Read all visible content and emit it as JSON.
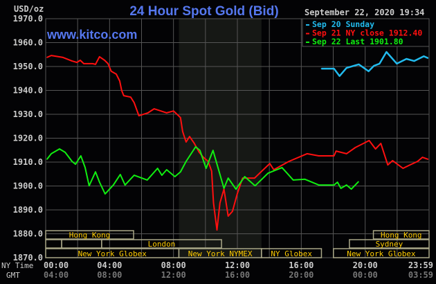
{
  "chart_data": {
    "type": "line",
    "title": "24 Hour Spot Gold (Bid)",
    "watermark": "www.kitco.com",
    "timestamp": "September 22, 2020 19:34",
    "ylabel": "USD/oz",
    "ylim": [
      1870,
      1970
    ],
    "yticks": [
      "1970.0",
      "1960.0",
      "1950.0",
      "1940.0",
      "1930.0",
      "1920.0",
      "1910.0",
      "1900.0",
      "1890.0",
      "1880.0",
      "1870.0"
    ],
    "xaxis_label": "NY Time",
    "xaxis2_label": "GMT",
    "xticks": [
      "00:00",
      "04:00",
      "08:00",
      "12:00",
      "16:00",
      "20:00",
      "23:59"
    ],
    "xticks_gmt": [
      "04:00",
      "08:00",
      "12:00",
      "16:00",
      "20:00",
      "00:00",
      "03:59"
    ],
    "grid": true,
    "legend_position": "top-right",
    "nymex_shade": [
      "08:20",
      "13:30"
    ],
    "series": [
      {
        "name": "Sep 20 Sunday",
        "legend": "Sep 20 Sunday",
        "color": "#22bbee",
        "points": [
          [
            "17:15",
            1949.1
          ],
          [
            "18:02",
            1949.1
          ],
          [
            "18:23",
            1946.0
          ],
          [
            "18:49",
            1949.4
          ],
          [
            "19:35",
            1950.9
          ],
          [
            "20:12",
            1948.0
          ],
          [
            "20:32",
            1950.3
          ],
          [
            "20:53",
            1951.2
          ],
          [
            "21:19",
            1956.1
          ],
          [
            "21:58",
            1951.2
          ],
          [
            "22:34",
            1953.2
          ],
          [
            "23:03",
            1952.3
          ],
          [
            "23:39",
            1954.3
          ],
          [
            "23:55",
            1953.5
          ]
        ]
      },
      {
        "name": "Sep 21 NY close 1912.40",
        "legend": "Sep 21 NY close 1912.40",
        "color": "#ff1010",
        "points": [
          [
            "00:05",
            1953.8
          ],
          [
            "00:21",
            1954.6
          ],
          [
            "01:05",
            1953.8
          ],
          [
            "01:39",
            1952.3
          ],
          [
            "01:57",
            1951.7
          ],
          [
            "02:10",
            1952.6
          ],
          [
            "02:23",
            1951.2
          ],
          [
            "02:56",
            1951.2
          ],
          [
            "03:07",
            1950.9
          ],
          [
            "03:22",
            1954.1
          ],
          [
            "03:41",
            1952.6
          ],
          [
            "03:54",
            1951.2
          ],
          [
            "04:06",
            1948.0
          ],
          [
            "04:25",
            1946.8
          ],
          [
            "04:38",
            1943.9
          ],
          [
            "04:45",
            1940.1
          ],
          [
            "04:53",
            1937.8
          ],
          [
            "05:19",
            1937.2
          ],
          [
            "05:32",
            1934.9
          ],
          [
            "05:50",
            1929.4
          ],
          [
            "06:24",
            1930.6
          ],
          [
            "06:47",
            1932.3
          ],
          [
            "07:34",
            1930.6
          ],
          [
            "08:00",
            1931.4
          ],
          [
            "08:26",
            1928.6
          ],
          [
            "08:34",
            1922.8
          ],
          [
            "08:47",
            1918.4
          ],
          [
            "09:00",
            1920.7
          ],
          [
            "09:18",
            1917.8
          ],
          [
            "09:36",
            1914.1
          ],
          [
            "09:52",
            1912.0
          ],
          [
            "10:10",
            1910.3
          ],
          [
            "10:23",
            1906.2
          ],
          [
            "10:30",
            1892.9
          ],
          [
            "10:43",
            1881.6
          ],
          [
            "10:54",
            1892.9
          ],
          [
            "11:09",
            1898.7
          ],
          [
            "11:25",
            1887.4
          ],
          [
            "11:41",
            1889.4
          ],
          [
            "11:59",
            1896.7
          ],
          [
            "12:19",
            1903.3
          ],
          [
            "13:04",
            1903.3
          ],
          [
            "14:01",
            1909.4
          ],
          [
            "14:16",
            1906.8
          ],
          [
            "15:13",
            1910.3
          ],
          [
            "16:21",
            1913.5
          ],
          [
            "17:05",
            1912.6
          ],
          [
            "18:02",
            1912.6
          ],
          [
            "18:10",
            1914.6
          ],
          [
            "18:49",
            1913.5
          ],
          [
            "19:22",
            1916.1
          ],
          [
            "20:14",
            1919.0
          ],
          [
            "20:38",
            1915.5
          ],
          [
            "20:58",
            1917.8
          ],
          [
            "21:24",
            1908.8
          ],
          [
            "21:42",
            1910.6
          ],
          [
            "22:21",
            1907.4
          ],
          [
            "22:47",
            1908.8
          ],
          [
            "23:16",
            1910.3
          ],
          [
            "23:34",
            1912.0
          ],
          [
            "23:55",
            1911.2
          ]
        ]
      },
      {
        "name": "Sep 22 Last 1901.80",
        "legend": "Sep 22 Last 1901.80",
        "color": "#11ee11",
        "points": [
          [
            "00:05",
            1911.2
          ],
          [
            "00:21",
            1913.5
          ],
          [
            "00:52",
            1915.5
          ],
          [
            "01:13",
            1914.1
          ],
          [
            "01:39",
            1910.3
          ],
          [
            "01:52",
            1909.1
          ],
          [
            "02:12",
            1912.6
          ],
          [
            "02:28",
            1907.7
          ],
          [
            "02:43",
            1900.1
          ],
          [
            "03:07",
            1905.9
          ],
          [
            "03:22",
            1901.6
          ],
          [
            "03:43",
            1896.7
          ],
          [
            "04:14",
            1900.4
          ],
          [
            "04:40",
            1904.8
          ],
          [
            "04:58",
            1900.4
          ],
          [
            "05:32",
            1904.5
          ],
          [
            "06:08",
            1903.0
          ],
          [
            "06:21",
            1902.5
          ],
          [
            "07:00",
            1907.4
          ],
          [
            "07:16",
            1904.5
          ],
          [
            "07:34",
            1906.8
          ],
          [
            "08:05",
            1903.9
          ],
          [
            "08:26",
            1905.9
          ],
          [
            "08:47",
            1910.3
          ],
          [
            "09:23",
            1916.4
          ],
          [
            "09:39",
            1914.9
          ],
          [
            "10:02",
            1907.4
          ],
          [
            "10:28",
            1914.9
          ],
          [
            "11:09",
            1899.0
          ],
          [
            "11:25",
            1903.3
          ],
          [
            "11:54",
            1898.7
          ],
          [
            "12:27",
            1903.9
          ],
          [
            "13:06",
            1900.1
          ],
          [
            "13:55",
            1905.4
          ],
          [
            "14:47",
            1907.7
          ],
          [
            "15:29",
            1902.5
          ],
          [
            "16:13",
            1902.8
          ],
          [
            "17:05",
            1900.4
          ],
          [
            "18:02",
            1900.4
          ],
          [
            "18:15",
            1901.6
          ],
          [
            "18:28",
            1899.0
          ],
          [
            "18:49",
            1900.4
          ],
          [
            "19:07",
            1898.7
          ],
          [
            "19:34",
            1901.8
          ]
        ]
      }
    ],
    "sessions": [
      {
        "label": "Hong Kong",
        "row": 0,
        "start": "00:00",
        "end": "05:30",
        "show": true
      },
      {
        "label": "Hong Kong",
        "row": 0,
        "start": "20:30",
        "end": "23:59",
        "show": true
      },
      {
        "label": "",
        "row": 1,
        "start": "00:00",
        "end": "01:00",
        "show": false
      },
      {
        "label": "",
        "row": 1,
        "start": "01:00",
        "end": "03:30",
        "show": false
      },
      {
        "label": "London",
        "row": 1,
        "start": "03:30",
        "end": "11:00",
        "show": true
      },
      {
        "label": "Sydney",
        "row": 1,
        "start": "19:00",
        "end": "23:59",
        "show": true
      },
      {
        "label": "New York Globex",
        "row": 2,
        "start": "00:00",
        "end": "08:20",
        "show": true
      },
      {
        "label": "New York NYMEX",
        "row": 2,
        "start": "08:20",
        "end": "13:30",
        "show": true
      },
      {
        "label": "NY Globex",
        "row": 2,
        "start": "13:30",
        "end": "17:15",
        "show": true
      },
      {
        "label": "New York Globex",
        "row": 2,
        "start": "18:00",
        "end": "23:59",
        "show": true
      }
    ],
    "colors": {
      "title": "#5577ee",
      "axis_text": "#cccccc",
      "gmt_text": "#777777",
      "grid": "#555555",
      "session_border": "#aaa888",
      "session_text": "#ffcc00",
      "shade": "#161815"
    }
  }
}
